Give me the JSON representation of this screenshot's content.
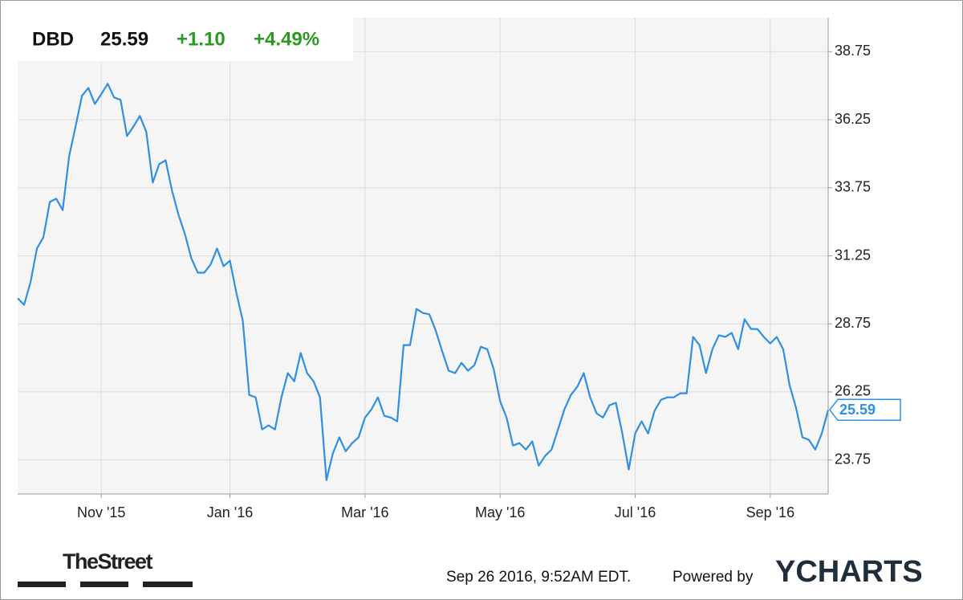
{
  "chart_data": {
    "type": "line",
    "ticker": "DBD",
    "price": "25.59",
    "change": "+1.10",
    "change_percent": "+4.49%",
    "change_color": "#2a9a22",
    "color": "#2f8fe3",
    "categories": [
      null,
      null,
      null,
      null,
      null,
      null,
      null,
      null,
      null,
      null,
      null,
      null,
      null,
      "Nov '15",
      null,
      null,
      null,
      null,
      null,
      null,
      null,
      null,
      null,
      null,
      null,
      null,
      null,
      null,
      null,
      null,
      null,
      null,
      null,
      "Jan '16",
      null,
      null,
      null,
      null,
      null,
      null,
      null,
      null,
      null,
      null,
      null,
      null,
      null,
      null,
      null,
      null,
      null,
      null,
      null,
      null,
      "Mar '16",
      null,
      null,
      null,
      null,
      null,
      null,
      null,
      null,
      null,
      null,
      null,
      null,
      null,
      null,
      null,
      null,
      null,
      null,
      null,
      null,
      "May '16",
      null,
      null,
      null,
      null,
      null,
      null,
      null,
      null,
      null,
      null,
      null,
      null,
      null,
      null,
      null,
      null,
      null,
      null,
      null,
      null,
      "Jul '16",
      null,
      null,
      null,
      null,
      null,
      null,
      null,
      null,
      null,
      null,
      null,
      null,
      null,
      null,
      null,
      null,
      null,
      null,
      null,
      null,
      "Sep '16",
      null,
      null,
      null,
      null,
      null,
      null,
      null,
      null,
      null
    ],
    "values": [
      29.69,
      29.45,
      30.28,
      31.52,
      31.93,
      33.23,
      33.35,
      32.93,
      34.91,
      36.0,
      37.13,
      37.42,
      36.83,
      37.19,
      37.57,
      37.07,
      36.98,
      35.65,
      36.0,
      36.39,
      35.8,
      33.94,
      34.62,
      34.76,
      33.64,
      32.76,
      32.05,
      31.16,
      30.63,
      30.63,
      30.93,
      31.52,
      30.87,
      31.07,
      29.89,
      28.86,
      26.14,
      26.05,
      24.87,
      25.02,
      24.87,
      26.05,
      26.94,
      26.64,
      27.68,
      26.94,
      26.64,
      26.05,
      23.01,
      23.99,
      24.58,
      24.07,
      24.37,
      24.58,
      25.31,
      25.61,
      26.05,
      25.37,
      25.31,
      25.17,
      27.97,
      27.97,
      29.3,
      29.15,
      29.1,
      28.5,
      27.74,
      27.03,
      26.94,
      27.32,
      27.03,
      27.23,
      27.91,
      27.82,
      27.09,
      25.91,
      25.31,
      24.28,
      24.37,
      24.13,
      24.43,
      23.54,
      23.9,
      24.13,
      24.87,
      25.61,
      26.14,
      26.44,
      26.94,
      26.05,
      25.46,
      25.31,
      25.76,
      25.85,
      24.72,
      23.4,
      24.72,
      25.17,
      24.72,
      25.55,
      25.96,
      26.05,
      26.05,
      26.2,
      26.2,
      28.27,
      27.97,
      26.94,
      27.82,
      28.33,
      28.27,
      28.42,
      27.82,
      28.92,
      28.56,
      28.56,
      28.27,
      28.03,
      28.27,
      27.82,
      26.5,
      25.67,
      24.58,
      24.49,
      24.13,
      24.72,
      25.59
    ],
    "ylim": [
      22.5,
      40.0
    ],
    "yticks": [
      23.75,
      26.25,
      28.75,
      31.25,
      33.75,
      36.25,
      38.75
    ],
    "grid": true
  },
  "footer": {
    "source_logo": "TheStreet",
    "timestamp": "Sep 26 2016, 9:52AM EDT.",
    "powered_by": "Powered by",
    "brand": "YCHARTS"
  }
}
